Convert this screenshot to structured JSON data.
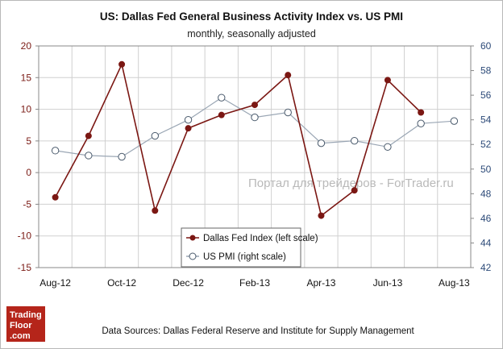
{
  "chart_data": {
    "type": "line",
    "title": "US: Dallas Fed General Business Activity Index vs. US PMI",
    "subtitle": "monthly, seasonally adjusted",
    "categories": [
      "Aug-12",
      "Sep-12",
      "Oct-12",
      "Nov-12",
      "Dec-12",
      "Jan-13",
      "Feb-13",
      "Mar-13",
      "Apr-13",
      "May-13",
      "Jun-13",
      "Jul-13",
      "Aug-13"
    ],
    "x_tick_labels": [
      "Aug-12",
      "Oct-12",
      "Dec-12",
      "Feb-13",
      "Apr-13",
      "Jun-13",
      "Aug-13"
    ],
    "left_axis": {
      "ylim": [
        -15,
        20
      ],
      "ticks": [
        "20",
        "15",
        "10",
        "5",
        "0",
        "-5",
        "-10",
        "-15"
      ],
      "color": "#7a1a14"
    },
    "right_axis": {
      "ylim": [
        42,
        60
      ],
      "ticks": [
        "60",
        "58",
        "56",
        "54",
        "52",
        "50",
        "48",
        "46",
        "44",
        "42"
      ],
      "color": "#2c4a78"
    },
    "series": [
      {
        "name": "Dallas Fed Index (left scale)",
        "axis": "left",
        "color": "#7b1713",
        "marker": "filled-circle",
        "values": [
          -3.9,
          5.8,
          17.1,
          -6.0,
          7.0,
          9.1,
          10.7,
          15.4,
          -6.8,
          -2.8,
          14.6,
          9.5,
          null
        ]
      },
      {
        "name": "US PMI (right scale)",
        "axis": "right",
        "color": "#9aa6b4",
        "marker": "open-circle",
        "values": [
          51.5,
          51.1,
          51.0,
          52.7,
          54.0,
          55.8,
          54.2,
          54.6,
          52.1,
          52.3,
          51.8,
          53.7,
          53.9
        ]
      }
    ],
    "grid": true,
    "legend_position": "bottom-center"
  },
  "watermark": "Портал для трейдеров - ForTrader.ru",
  "source_note": "Data Sources: Dallas Federal Reserve and Institute for Supply Management",
  "logo": {
    "line1": "Trading",
    "line2": "Floor",
    "line3": ".com",
    "bg_color": "#b5251a"
  }
}
